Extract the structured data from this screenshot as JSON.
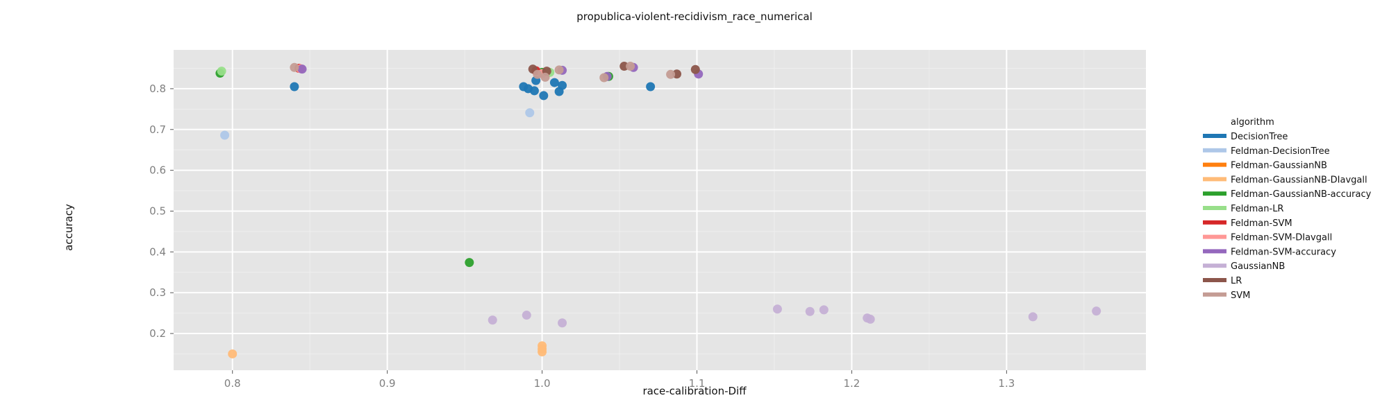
{
  "chart_data": {
    "type": "scatter",
    "title": "propublica-violent-recidivism_race_numerical",
    "xlabel": "race-calibration-Diff",
    "ylabel": "accuracy",
    "xlim": [
      0.762,
      1.39
    ],
    "ylim": [
      0.11,
      0.895
    ],
    "x_ticks": [
      0.8,
      0.9,
      1.0,
      1.1,
      1.2,
      1.3
    ],
    "x_tick_labels": [
      "0.8",
      "0.9",
      "1.0",
      "1.1",
      "1.2",
      "1.3"
    ],
    "y_ticks": [
      0.2,
      0.3,
      0.4,
      0.5,
      0.6,
      0.7,
      0.8
    ],
    "y_tick_labels": [
      "0.2",
      "0.3",
      "0.4",
      "0.5",
      "0.6",
      "0.7",
      "0.8"
    ],
    "grid": true,
    "legend_position": "right",
    "legend_title": "algorithm",
    "background": "#e5e5e5",
    "series": [
      {
        "name": "DecisionTree",
        "color": "#1f77b4",
        "points": [
          [
            0.84,
            0.805
          ],
          [
            0.988,
            0.805
          ],
          [
            0.991,
            0.8
          ],
          [
            0.995,
            0.795
          ],
          [
            0.996,
            0.82
          ],
          [
            1.001,
            0.783
          ],
          [
            1.008,
            0.815
          ],
          [
            1.011,
            0.793
          ],
          [
            1.013,
            0.808
          ],
          [
            1.07,
            0.805
          ]
        ]
      },
      {
        "name": "Feldman-DecisionTree",
        "color": "#aec7e8",
        "points": [
          [
            0.795,
            0.686
          ],
          [
            0.992,
            0.741
          ]
        ]
      },
      {
        "name": "Feldman-GaussianNB",
        "color": "#ff7f0e",
        "points": []
      },
      {
        "name": "Feldman-GaussianNB-DIavgall",
        "color": "#ffbb78",
        "points": [
          [
            0.8,
            0.15
          ],
          [
            1.0,
            0.17
          ],
          [
            1.0,
            0.162
          ],
          [
            1.0,
            0.155
          ]
        ]
      },
      {
        "name": "Feldman-GaussianNB-accuracy",
        "color": "#2ca02c",
        "points": [
          [
            0.792,
            0.838
          ],
          [
            0.953,
            0.374
          ],
          [
            1.0,
            0.84
          ],
          [
            1.043,
            0.83
          ]
        ]
      },
      {
        "name": "Feldman-LR",
        "color": "#98df8a",
        "points": [
          [
            0.793,
            0.843
          ],
          [
            1.005,
            0.84
          ]
        ]
      },
      {
        "name": "Feldman-SVM",
        "color": "#d62728",
        "points": [
          [
            0.843,
            0.85
          ],
          [
            0.996,
            0.844
          ]
        ]
      },
      {
        "name": "Feldman-SVM-DIavgall",
        "color": "#ff9896",
        "points": [
          [
            0.844,
            0.849
          ],
          [
            1.0,
            0.837
          ]
        ]
      },
      {
        "name": "Feldman-SVM-accuracy",
        "color": "#9467bd",
        "points": [
          [
            0.845,
            0.848
          ],
          [
            1.013,
            0.845
          ],
          [
            1.059,
            0.852
          ],
          [
            1.101,
            0.836
          ],
          [
            1.042,
            0.83
          ]
        ]
      },
      {
        "name": "GaussianNB",
        "color": "#c5b0d5",
        "points": [
          [
            0.968,
            0.233
          ],
          [
            0.99,
            0.245
          ],
          [
            1.013,
            0.226
          ],
          [
            1.152,
            0.26
          ],
          [
            1.173,
            0.254
          ],
          [
            1.182,
            0.258
          ],
          [
            1.21,
            0.238
          ],
          [
            1.212,
            0.235
          ],
          [
            1.317,
            0.241
          ],
          [
            1.358,
            0.255
          ]
        ]
      },
      {
        "name": "LR",
        "color": "#8c564b",
        "points": [
          [
            0.994,
            0.848
          ],
          [
            1.003,
            0.843
          ],
          [
            1.053,
            0.855
          ],
          [
            1.087,
            0.836
          ],
          [
            1.099,
            0.847
          ]
        ]
      },
      {
        "name": "SVM",
        "color": "#c49c94",
        "points": [
          [
            0.84,
            0.852
          ],
          [
            0.997,
            0.835
          ],
          [
            1.002,
            0.828
          ],
          [
            1.011,
            0.846
          ],
          [
            1.04,
            0.827
          ],
          [
            1.057,
            0.855
          ],
          [
            1.083,
            0.835
          ]
        ]
      }
    ]
  }
}
